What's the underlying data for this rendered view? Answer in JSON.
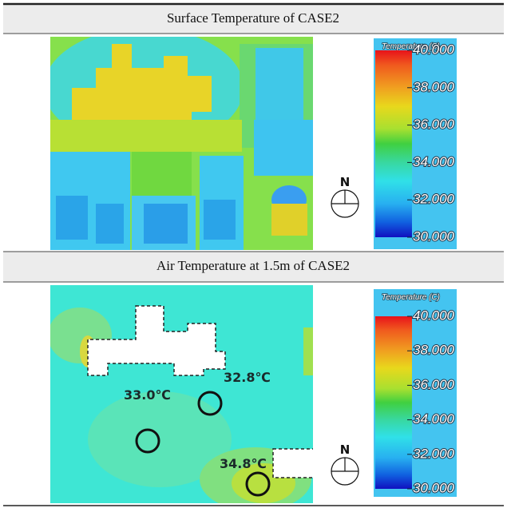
{
  "figure": {
    "panels": [
      {
        "title": "Surface Temperature of CASE2",
        "compass": "N",
        "colorbar": {
          "title": "Temperature (C)",
          "ticks": [
            {
              "value": 40,
              "label": "40.000"
            },
            {
              "value": 38,
              "label": "38.000"
            },
            {
              "value": 36,
              "label": "36.000"
            },
            {
              "value": 34,
              "label": "34.000"
            },
            {
              "value": 32,
              "label": "32.000"
            },
            {
              "value": 30,
              "label": "30.000"
            }
          ]
        }
      },
      {
        "title": "Air Temperature at 1.5m of CASE2",
        "compass": "N",
        "colorbar": {
          "title": "Temperature (C)",
          "ticks": [
            {
              "value": 40,
              "label": "40.000"
            },
            {
              "value": 38,
              "label": "38.000"
            },
            {
              "value": 36,
              "label": "36.000"
            },
            {
              "value": 34,
              "label": "34.000"
            },
            {
              "value": 32,
              "label": "32.000"
            },
            {
              "value": 30,
              "label": "30.000"
            }
          ]
        },
        "annotations": [
          "32.8℃",
          "33.0℃",
          "34.8℃"
        ]
      }
    ]
  }
}
